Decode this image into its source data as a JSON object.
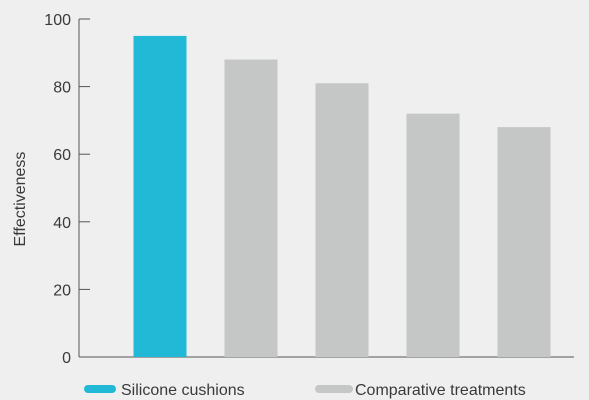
{
  "chart_data": {
    "type": "bar",
    "title": "",
    "xlabel": "",
    "ylabel": "Effectiveness",
    "ylim": [
      0,
      100
    ],
    "yticks": [
      "0",
      "20",
      "40",
      "60",
      "80",
      "100"
    ],
    "categories": [
      "",
      "",
      "",
      "",
      ""
    ],
    "values": [
      95,
      88,
      81,
      72,
      68
    ],
    "bar_groups": [
      "highlight",
      "comparative",
      "comparative",
      "comparative",
      "comparative"
    ],
    "grid": false,
    "legend": {
      "placement": "bottom",
      "items": [
        {
          "label": "Silicone cushions",
          "color": "#21b9d6"
        },
        {
          "label": "Comparative treatments",
          "color": "#c5c6c6"
        }
      ]
    },
    "colors": {
      "highlight": "#21b9d6",
      "comparative": "#c5c6c6",
      "axis": "#555555"
    }
  }
}
